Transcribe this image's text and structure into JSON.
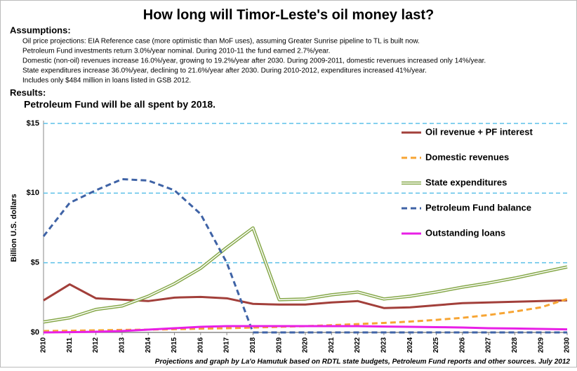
{
  "header": {
    "assumptions_heading": "Assumptions:",
    "assumptions": [
      "Oil price projections: EIA Reference case (more optimistic than MoF uses), assuming Greater Sunrise pipeline to TL is built now.",
      "Petroleum Fund investments return 3.0%/year nominal.  During 2010-11 the fund earned 2.7%/year.",
      "Domestic (non-oil) revenues increase 16.0%/year, growing to 19.2%/year after 2030.  During 2009-2011, domestic revenues increased only 14%/year.",
      "State expenditures increase 36.0%/year, declining to 21.6%/year after 2030. During 2010-2012, expenditures increased 41%/year.",
      "Includes only $484 million in loans listed in GSB 2012."
    ],
    "results_heading": "Results:",
    "results": "Petroleum Fund will be all spent by 2018.",
    "footer": "Projections and graph by La'o Hamutuk based on RDTL state budgets, Petroleum Fund reports and other sources.   July 2012"
  },
  "chart_data": {
    "type": "line",
    "title": "How long will Timor-Leste's oil money last?",
    "y_label": "Billion U.S. dollars",
    "x": [
      2010,
      2011,
      2012,
      2013,
      2014,
      2015,
      2016,
      2017,
      2018,
      2019,
      2020,
      2021,
      2022,
      2023,
      2024,
      2025,
      2026,
      2027,
      2028,
      2029,
      2030
    ],
    "xlim": [
      2010,
      2030
    ],
    "xticks": [
      2010,
      2011,
      2012,
      2013,
      2014,
      2015,
      2016,
      2017,
      2018,
      2019,
      2020,
      2021,
      2022,
      2023,
      2024,
      2025,
      2026,
      2027,
      2028,
      2029,
      2030
    ],
    "ylim": [
      0,
      15
    ],
    "yticks": [
      {
        "value": 0,
        "label": "$0"
      },
      {
        "value": 5,
        "label": "$5"
      },
      {
        "value": 10,
        "label": "$10"
      },
      {
        "value": 15,
        "label": "$15"
      }
    ],
    "grid": true,
    "legend": "right",
    "series": [
      {
        "name": "Oil revenue + PF interest",
        "color": "#a23f3a",
        "style": "solid",
        "values": [
          2.3,
          3.45,
          2.45,
          2.35,
          2.25,
          2.5,
          2.55,
          2.45,
          2.05,
          2.0,
          2.0,
          2.15,
          2.25,
          1.75,
          1.8,
          1.95,
          2.1,
          2.15,
          2.2,
          2.25,
          2.3
        ]
      },
      {
        "name": "Domestic revenues",
        "color": "#f7a534",
        "style": "dashed",
        "values": [
          0.1,
          0.12,
          0.15,
          0.18,
          0.2,
          0.23,
          0.27,
          0.3,
          0.35,
          0.4,
          0.45,
          0.52,
          0.6,
          0.68,
          0.78,
          0.9,
          1.05,
          1.25,
          1.5,
          1.8,
          2.4
        ]
      },
      {
        "name": "State expenditures",
        "color": "#86a84a",
        "style": "double",
        "values": [
          0.75,
          1.05,
          1.65,
          1.9,
          2.6,
          3.5,
          4.6,
          6.1,
          7.5,
          2.35,
          2.4,
          2.7,
          2.9,
          2.4,
          2.6,
          2.9,
          3.25,
          3.55,
          3.9,
          4.3,
          4.7
        ]
      },
      {
        "name": "Petroleum Fund  balance",
        "color": "#3f63a6",
        "style": "dashed",
        "values": [
          6.9,
          9.3,
          10.2,
          11.0,
          10.9,
          10.2,
          8.5,
          5.0,
          0,
          0,
          0,
          0,
          0,
          0,
          0,
          0,
          0,
          0,
          0,
          0,
          0
        ]
      },
      {
        "name": "Outstanding loans",
        "color": "#e81fe6",
        "style": "solid",
        "values": [
          0,
          0.02,
          0.05,
          0.1,
          0.2,
          0.3,
          0.4,
          0.45,
          0.45,
          0.45,
          0.45,
          0.45,
          0.45,
          0.42,
          0.4,
          0.38,
          0.35,
          0.3,
          0.28,
          0.25,
          0.22
        ]
      }
    ]
  }
}
